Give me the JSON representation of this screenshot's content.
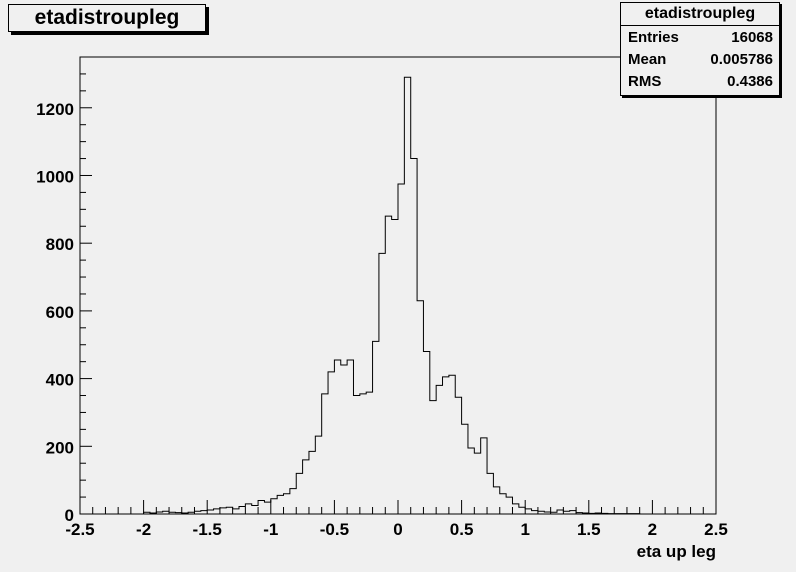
{
  "title": "etadistroupleg",
  "stats": {
    "name": "etadistroupleg",
    "rows": [
      {
        "label": "Entries",
        "value": "16068"
      },
      {
        "label": "Mean",
        "value": "0.005786"
      },
      {
        "label": "RMS",
        "value": "0.4386"
      }
    ]
  },
  "chart_data": {
    "type": "bar",
    "subtype": "step-histogram",
    "title": "etadistroupleg",
    "xlabel": "eta up leg",
    "ylabel": "",
    "xlim": [
      -2.5,
      2.5
    ],
    "ylim": [
      0,
      1350
    ],
    "x_ticks": [
      "-2.5",
      "-2",
      "-1.5",
      "-1",
      "-0.5",
      "0",
      "0.5",
      "1",
      "1.5",
      "2",
      "2.5"
    ],
    "y_ticks": [
      "0",
      "200",
      "400",
      "600",
      "800",
      "1000",
      "1200"
    ],
    "bin_width": 0.05,
    "x": [
      -2.5,
      -2.45,
      -2.4,
      -2.35,
      -2.3,
      -2.25,
      -2.2,
      -2.15,
      -2.1,
      -2.05,
      -2.0,
      -1.95,
      -1.9,
      -1.85,
      -1.8,
      -1.75,
      -1.7,
      -1.65,
      -1.6,
      -1.55,
      -1.5,
      -1.45,
      -1.4,
      -1.35,
      -1.3,
      -1.25,
      -1.2,
      -1.15,
      -1.1,
      -1.05,
      -1.0,
      -0.95,
      -0.9,
      -0.85,
      -0.8,
      -0.75,
      -0.7,
      -0.65,
      -0.6,
      -0.55,
      -0.5,
      -0.45,
      -0.4,
      -0.35,
      -0.3,
      -0.25,
      -0.2,
      -0.15,
      -0.1,
      -0.05,
      0.0,
      0.05,
      0.1,
      0.15,
      0.2,
      0.25,
      0.3,
      0.35,
      0.4,
      0.45,
      0.5,
      0.55,
      0.6,
      0.65,
      0.7,
      0.75,
      0.8,
      0.85,
      0.9,
      0.95,
      1.0,
      1.05,
      1.1,
      1.15,
      1.2,
      1.25,
      1.3,
      1.35,
      1.4,
      1.45,
      1.5,
      1.55,
      1.6,
      1.65,
      1.7,
      1.75,
      1.8,
      1.85,
      1.9,
      1.95,
      2.0,
      2.05,
      2.1,
      2.15,
      2.2,
      2.25,
      2.3,
      2.35,
      2.4,
      2.45
    ],
    "values": [
      0,
      0,
      0,
      0,
      0,
      0,
      0,
      0,
      0,
      0,
      5,
      3,
      6,
      8,
      5,
      4,
      3,
      5,
      8,
      10,
      12,
      15,
      18,
      20,
      15,
      22,
      30,
      25,
      40,
      35,
      45,
      55,
      60,
      75,
      120,
      160,
      185,
      230,
      355,
      420,
      455,
      440,
      455,
      350,
      355,
      360,
      510,
      770,
      880,
      870,
      975,
      1290,
      1050,
      630,
      480,
      335,
      380,
      405,
      410,
      345,
      265,
      195,
      180,
      225,
      120,
      80,
      60,
      50,
      30,
      20,
      15,
      10,
      8,
      6,
      5,
      12,
      8,
      10,
      4,
      3,
      2,
      3,
      2,
      1,
      1,
      1,
      1,
      1,
      0,
      0,
      0,
      0,
      0,
      0,
      0,
      0,
      0,
      0,
      0,
      0
    ]
  }
}
